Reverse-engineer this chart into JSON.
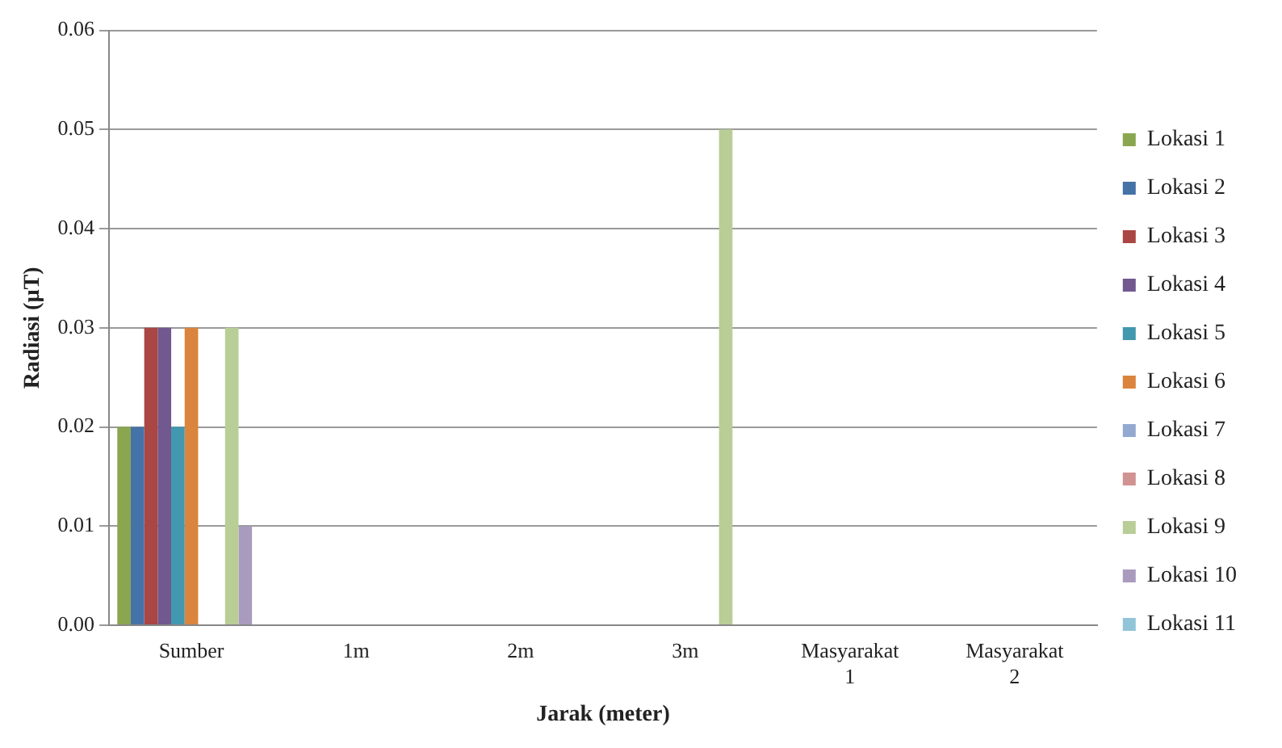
{
  "chart_data": {
    "type": "bar",
    "xlabel": "Jarak (meter)",
    "ylabel": "Radiasi (µT)",
    "categories": [
      "Sumber",
      "1m",
      "2m",
      "3m",
      "Masyarakat 1",
      "Masyarakat 2"
    ],
    "series": [
      {
        "name": "Lokasi 1",
        "color": "#8aa64e",
        "values": [
          0.02,
          0,
          0,
          0,
          0,
          0
        ]
      },
      {
        "name": "Lokasi 2",
        "color": "#4572a7",
        "values": [
          0.02,
          0,
          0,
          0,
          0,
          0
        ]
      },
      {
        "name": "Lokasi 3",
        "color": "#aa4643",
        "values": [
          0.03,
          0,
          0,
          0,
          0,
          0
        ]
      },
      {
        "name": "Lokasi 4",
        "color": "#71588f",
        "values": [
          0.03,
          0,
          0,
          0,
          0,
          0
        ]
      },
      {
        "name": "Lokasi 5",
        "color": "#4198af",
        "values": [
          0.02,
          0,
          0,
          0,
          0,
          0
        ]
      },
      {
        "name": "Lokasi 6",
        "color": "#db843d",
        "values": [
          0.03,
          0,
          0,
          0,
          0,
          0
        ]
      },
      {
        "name": "Lokasi 7",
        "color": "#93a9cf",
        "values": [
          0,
          0,
          0,
          0,
          0,
          0
        ]
      },
      {
        "name": "Lokasi 8",
        "color": "#d19392",
        "values": [
          0,
          0,
          0,
          0,
          0,
          0
        ]
      },
      {
        "name": "Lokasi 9",
        "color": "#b9cd96",
        "values": [
          0.03,
          0,
          0,
          0.05,
          0,
          0
        ]
      },
      {
        "name": "Lokasi 10",
        "color": "#a99bbd",
        "values": [
          0.01,
          0,
          0,
          0,
          0,
          0
        ]
      },
      {
        "name": "Lokasi 11",
        "color": "#92c5d8",
        "values": [
          0,
          0,
          0,
          0,
          0,
          0
        ]
      }
    ],
    "ylim": [
      0,
      0.06
    ],
    "yticks": [
      {
        "value": 0,
        "label": "0.00"
      },
      {
        "value": 0.01,
        "label": "0.01"
      },
      {
        "value": 0.02,
        "label": "0.02"
      },
      {
        "value": 0.03,
        "label": "0.03"
      },
      {
        "value": 0.04,
        "label": "0.04"
      },
      {
        "value": 0.05,
        "label": "0.05"
      },
      {
        "value": 0.06,
        "label": "0.06"
      }
    ],
    "grid": "y",
    "legend": "right"
  }
}
